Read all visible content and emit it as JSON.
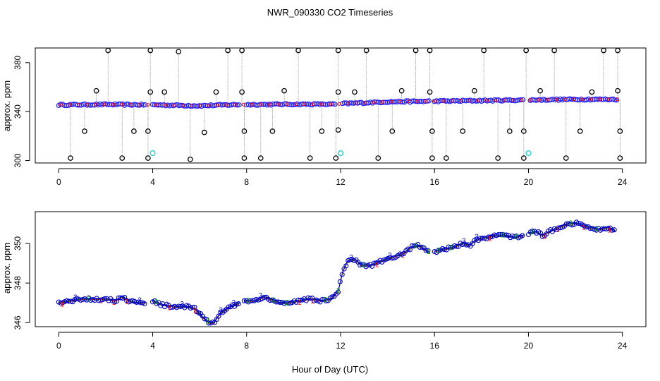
{
  "title": "NWR_090330  CO2 Timeseries",
  "xlabel": "Hour of Day (UTC)",
  "colors": {
    "frame": "#000000",
    "raw_points": "#000000",
    "flagged_points": "#22d3d3",
    "drop_lines": "#999999",
    "main_points": "#2020ff",
    "series1": "#ff0000",
    "series2": "#00aa00",
    "series3": "#0000cc"
  },
  "chart_data": [
    {
      "id": "panel-top",
      "type": "scatter",
      "ylabel": "approx. ppm",
      "xlim": [
        -1,
        25
      ],
      "ylim": [
        298,
        392
      ],
      "xticks": [
        0,
        4,
        8,
        12,
        16,
        20,
        24
      ],
      "yticks": [
        300,
        340,
        380
      ],
      "baseline": [
        [
          0,
          345.5
        ],
        [
          2,
          345.8
        ],
        [
          4,
          345.5
        ],
        [
          6,
          344.8
        ],
        [
          7.5,
          345.6
        ],
        [
          8.5,
          345.8
        ],
        [
          10,
          346
        ],
        [
          11.8,
          346
        ],
        [
          12.1,
          346.5
        ],
        [
          14,
          348
        ],
        [
          16,
          348.5
        ],
        [
          18,
          349
        ],
        [
          20,
          349.5
        ],
        [
          22,
          350
        ],
        [
          24,
          350
        ]
      ],
      "spikes": [
        {
          "x": 2.1,
          "y": 390
        },
        {
          "x": 3.9,
          "y": 390
        },
        {
          "x": 5.1,
          "y": 389
        },
        {
          "x": 7.2,
          "y": 390
        },
        {
          "x": 7.8,
          "y": 390
        },
        {
          "x": 10.2,
          "y": 390
        },
        {
          "x": 11.9,
          "y": 390
        },
        {
          "x": 13.1,
          "y": 390
        },
        {
          "x": 15.2,
          "y": 390
        },
        {
          "x": 15.8,
          "y": 390
        },
        {
          "x": 18.1,
          "y": 390
        },
        {
          "x": 19.9,
          "y": 390
        },
        {
          "x": 21.1,
          "y": 390
        },
        {
          "x": 23.2,
          "y": 390
        },
        {
          "x": 23.8,
          "y": 390
        },
        {
          "x": 0.5,
          "y": 302
        },
        {
          "x": 2.7,
          "y": 302
        },
        {
          "x": 3.8,
          "y": 302
        },
        {
          "x": 5.6,
          "y": 301
        },
        {
          "x": 7.9,
          "y": 302
        },
        {
          "x": 8.6,
          "y": 302
        },
        {
          "x": 10.7,
          "y": 302
        },
        {
          "x": 11.8,
          "y": 302
        },
        {
          "x": 13.6,
          "y": 302
        },
        {
          "x": 15.9,
          "y": 302
        },
        {
          "x": 16.5,
          "y": 302
        },
        {
          "x": 18.7,
          "y": 302
        },
        {
          "x": 19.8,
          "y": 302
        },
        {
          "x": 21.6,
          "y": 302
        },
        {
          "x": 23.9,
          "y": 302
        },
        {
          "x": 1.6,
          "y": 357
        },
        {
          "x": 3.9,
          "y": 356
        },
        {
          "x": 4.5,
          "y": 356
        },
        {
          "x": 6.7,
          "y": 356
        },
        {
          "x": 7.8,
          "y": 356
        },
        {
          "x": 9.6,
          "y": 357
        },
        {
          "x": 11.9,
          "y": 356
        },
        {
          "x": 12.6,
          "y": 356
        },
        {
          "x": 14.6,
          "y": 357
        },
        {
          "x": 15.8,
          "y": 356
        },
        {
          "x": 17.7,
          "y": 357
        },
        {
          "x": 20.5,
          "y": 357
        },
        {
          "x": 22.7,
          "y": 356
        },
        {
          "x": 23.8,
          "y": 357
        },
        {
          "x": 1.1,
          "y": 324
        },
        {
          "x": 3.2,
          "y": 324
        },
        {
          "x": 3.8,
          "y": 324
        },
        {
          "x": 6.2,
          "y": 323
        },
        {
          "x": 7.9,
          "y": 324
        },
        {
          "x": 9.1,
          "y": 324
        },
        {
          "x": 11.2,
          "y": 324
        },
        {
          "x": 11.9,
          "y": 325
        },
        {
          "x": 14.2,
          "y": 324
        },
        {
          "x": 15.9,
          "y": 324
        },
        {
          "x": 17.2,
          "y": 324
        },
        {
          "x": 19.2,
          "y": 324
        },
        {
          "x": 19.8,
          "y": 324
        },
        {
          "x": 22.2,
          "y": 324
        },
        {
          "x": 23.9,
          "y": 324
        }
      ],
      "flagged": [
        {
          "x": 4.0,
          "y": 306
        },
        {
          "x": 12.0,
          "y": 306
        },
        {
          "x": 20.0,
          "y": 306
        }
      ]
    },
    {
      "id": "panel-bottom",
      "type": "scatter",
      "ylabel": "approx. ppm",
      "xlim": [
        -1,
        25
      ],
      "ylim": [
        345.8,
        351.6
      ],
      "xticks": [
        0,
        4,
        8,
        12,
        16,
        20,
        24
      ],
      "yticks": [
        346,
        348,
        350
      ],
      "series_labels": [
        "1",
        "2",
        "3"
      ],
      "segments": [
        [
          [
            0,
            347.0
          ],
          [
            0.5,
            347.1
          ],
          [
            1,
            347.2
          ],
          [
            1.5,
            347.2
          ],
          [
            2,
            347.2
          ],
          [
            2.4,
            347.1
          ],
          [
            2.7,
            347.3
          ],
          [
            3.0,
            347.1
          ],
          [
            3.3,
            347.0
          ],
          [
            3.7,
            347.0
          ]
        ],
        [
          [
            4.0,
            347.1
          ],
          [
            4.4,
            346.9
          ],
          [
            5.0,
            346.8
          ],
          [
            5.5,
            346.8
          ],
          [
            5.8,
            346.7
          ],
          [
            6.1,
            346.3
          ],
          [
            6.4,
            346.0
          ],
          [
            6.6,
            346.0
          ],
          [
            6.9,
            346.5
          ],
          [
            7.3,
            346.8
          ],
          [
            7.7,
            347.0
          ]
        ],
        [
          [
            7.9,
            347.1
          ],
          [
            8.4,
            347.1
          ],
          [
            8.7,
            347.3
          ],
          [
            9.0,
            347.2
          ],
          [
            9.4,
            347.0
          ],
          [
            9.8,
            347.0
          ],
          [
            10.2,
            347.1
          ],
          [
            10.7,
            347.2
          ],
          [
            11.2,
            347.1
          ],
          [
            11.6,
            347.2
          ],
          [
            11.9,
            347.6
          ],
          [
            12.1,
            348.6
          ],
          [
            12.3,
            349.1
          ],
          [
            12.6,
            349.2
          ],
          [
            12.9,
            348.9
          ],
          [
            13.3,
            348.9
          ],
          [
            13.7,
            349.1
          ],
          [
            14.2,
            349.3
          ],
          [
            14.7,
            349.5
          ],
          [
            15.0,
            349.8
          ],
          [
            15.3,
            349.9
          ],
          [
            15.7,
            349.6
          ],
          [
            15.8,
            349.5
          ]
        ],
        [
          [
            16.0,
            349.6
          ],
          [
            16.4,
            349.7
          ],
          [
            16.8,
            349.8
          ],
          [
            17.2,
            350.0
          ],
          [
            17.5,
            349.9
          ],
          [
            17.8,
            350.2
          ],
          [
            18.2,
            350.3
          ],
          [
            18.6,
            350.4
          ],
          [
            19.0,
            350.4
          ],
          [
            19.4,
            350.3
          ],
          [
            19.8,
            350.4
          ]
        ],
        [
          [
            20.0,
            350.5
          ],
          [
            20.3,
            350.6
          ],
          [
            20.6,
            350.4
          ],
          [
            20.9,
            350.6
          ],
          [
            21.3,
            350.8
          ],
          [
            21.7,
            351.0
          ],
          [
            22.1,
            351.0
          ],
          [
            22.6,
            350.8
          ],
          [
            23.0,
            350.7
          ],
          [
            23.4,
            350.8
          ],
          [
            23.7,
            350.6
          ]
        ]
      ]
    }
  ]
}
